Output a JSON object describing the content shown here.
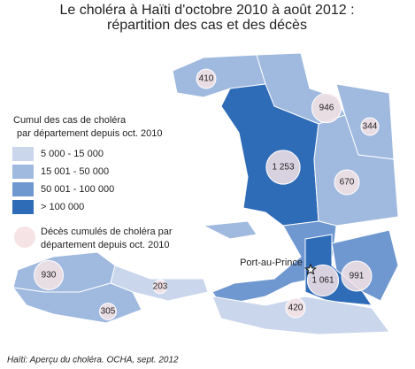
{
  "title": [
    "Le choléra à Haïti d'octobre 2010 à août 2012 :",
    "répartition des cas et des décès"
  ],
  "cases_legend": {
    "title": [
      "Cumul des cas de choléra",
      "par département depuis oct. 2010"
    ],
    "items": [
      "5 000 - 15 000",
      "15 001 - 50 000",
      "50 001 - 100 000",
      "> 100 000"
    ]
  },
  "deaths_legend": [
    "Décès cumulés de choléra par",
    "département depuis oct. 2010"
  ],
  "city": "Port-au-Prince",
  "deaths": [
    {
      "value": 410,
      "label": "410"
    },
    {
      "value": 946,
      "label": "946"
    },
    {
      "value": 344,
      "label": "344"
    },
    {
      "value": 1253,
      "label": "1 253"
    },
    {
      "value": 670,
      "label": "670"
    },
    {
      "value": 930,
      "label": "930"
    },
    {
      "value": 203,
      "label": "203"
    },
    {
      "value": 305,
      "label": "305"
    },
    {
      "value": 1061,
      "label": "1 061"
    },
    {
      "value": 991,
      "label": "991"
    },
    {
      "value": 420,
      "label": "420"
    }
  ],
  "source": "Haïti: Aperçu du choléra. OCHA, sept. 2012"
}
